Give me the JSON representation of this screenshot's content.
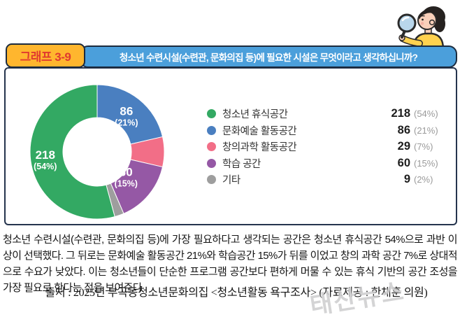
{
  "header": {
    "graph_label": "그래프 3-9",
    "title": "청소년 수련시설(수련관, 문화의집 등)에 필요한 시설은 무엇이라고 생각하십니까?"
  },
  "colors": {
    "label_box_bg": "#ffb62e",
    "label_box_text": "#e03a2f",
    "title_bar_bg": "#4b9fdb",
    "outline_navy": "#1c2b3e",
    "green": "#33a963",
    "blue": "#4a7fc0",
    "pink": "#f26e87",
    "purple": "#9558a5",
    "gray": "#9e9e9e"
  },
  "chart_data": {
    "type": "donut",
    "title": "청소년 수련시설(수련관, 문화의집 등)에 필요한 시설은 무엇이라고 생각하십니까?",
    "legend_position": "right",
    "slices": [
      {
        "label": "청소년 휴식공간",
        "value": 218,
        "pct": 54,
        "color": "#33a963",
        "show_label": true,
        "label_r": 0.78
      },
      {
        "label": "문화예술 활동공간",
        "value": 86,
        "pct": 21,
        "color": "#4a7fc0",
        "show_label": true,
        "label_r": 0.7
      },
      {
        "label": "창의과학 활동공간",
        "value": 29,
        "pct": 7,
        "color": "#f26e87",
        "show_label": false,
        "label_r": 0.7
      },
      {
        "label": "학습 공간",
        "value": 60,
        "pct": 15,
        "color": "#9558a5",
        "show_label": true,
        "label_r": 0.56
      },
      {
        "label": "기타",
        "value": 9,
        "pct": 2,
        "color": "#9e9e9e",
        "show_label": false,
        "label_r": 0.7
      }
    ],
    "draw_order": [
      1,
      2,
      3,
      4,
      0
    ],
    "start_angle_deg": 0,
    "direction": "clockwise"
  },
  "body_text": "청소년 수련시설(수련관, 문화의집 등)에 가장 필요하다고 생각되는 공간은 청소년 휴식공간 54%으로 과반 이상이 선택했다. 그 뒤로는 문화예술 활동공간 21%와 학습공간 15%가 뒤를 이었고 창의 과학 공간 7%로 상대적으로 수요가 낮았다. 이는 청소년들이 단순한 프로그램 공간보다 편하게 머물 수 있는 휴식 기반의 공간 조성을 가장 필요로 한다는 점을 보여준다",
  "source": "출처 : 2025년 부곡동청소년문화의집 <청소년활동 욕구조사> (자료제공 : 한채훈 의원)",
  "watermark": "태산뉴스"
}
